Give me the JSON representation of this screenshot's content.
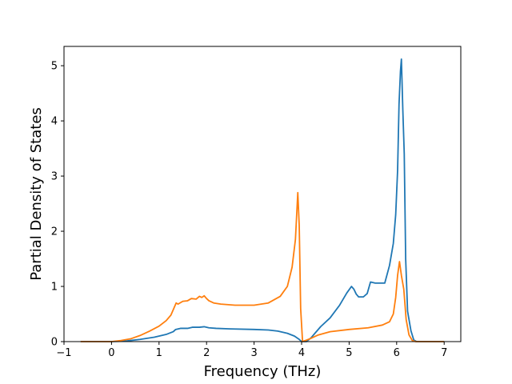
{
  "chart_data": {
    "type": "line",
    "title": "",
    "xlabel": "Frequency (THz)",
    "ylabel": "Partial Density of States",
    "xlim": [
      -1,
      7.35
    ],
    "ylim": [
      0,
      5.35
    ],
    "xticks": [
      -1,
      0,
      1,
      2,
      3,
      4,
      5,
      6,
      7
    ],
    "yticks": [
      0,
      1,
      2,
      3,
      4,
      5
    ],
    "grid": false,
    "legend": "none",
    "series": [
      {
        "color": "#1f77b4",
        "points": [
          [
            -0.65,
            0
          ],
          [
            0,
            0
          ],
          [
            0.3,
            0.01
          ],
          [
            0.6,
            0.04
          ],
          [
            0.9,
            0.08
          ],
          [
            1.15,
            0.13
          ],
          [
            1.3,
            0.18
          ],
          [
            1.35,
            0.22
          ],
          [
            1.45,
            0.24
          ],
          [
            1.6,
            0.24
          ],
          [
            1.7,
            0.26
          ],
          [
            1.85,
            0.26
          ],
          [
            1.95,
            0.27
          ],
          [
            2.05,
            0.25
          ],
          [
            2.2,
            0.24
          ],
          [
            2.5,
            0.23
          ],
          [
            3.0,
            0.22
          ],
          [
            3.3,
            0.21
          ],
          [
            3.5,
            0.19
          ],
          [
            3.7,
            0.15
          ],
          [
            3.85,
            0.1
          ],
          [
            3.95,
            0.04
          ],
          [
            4.0,
            0
          ],
          [
            4.1,
            0
          ],
          [
            4.2,
            0.07
          ],
          [
            4.3,
            0.17
          ],
          [
            4.4,
            0.27
          ],
          [
            4.6,
            0.43
          ],
          [
            4.8,
            0.66
          ],
          [
            4.95,
            0.88
          ],
          [
            5.05,
            1.0
          ],
          [
            5.1,
            0.95
          ],
          [
            5.15,
            0.86
          ],
          [
            5.2,
            0.81
          ],
          [
            5.3,
            0.81
          ],
          [
            5.38,
            0.87
          ],
          [
            5.45,
            1.08
          ],
          [
            5.55,
            1.06
          ],
          [
            5.75,
            1.06
          ],
          [
            5.85,
            1.38
          ],
          [
            5.93,
            1.78
          ],
          [
            5.98,
            2.3
          ],
          [
            6.02,
            3.1
          ],
          [
            6.05,
            4.3
          ],
          [
            6.08,
            4.9
          ],
          [
            6.1,
            5.12
          ],
          [
            6.13,
            4.2
          ],
          [
            6.16,
            3.4
          ],
          [
            6.19,
            1.5
          ],
          [
            6.23,
            0.55
          ],
          [
            6.3,
            0.2
          ],
          [
            6.36,
            0.03
          ],
          [
            6.42,
            0
          ],
          [
            7.0,
            0
          ]
        ]
      },
      {
        "color": "#ff7f0e",
        "points": [
          [
            -0.65,
            0
          ],
          [
            0,
            0
          ],
          [
            0.2,
            0.02
          ],
          [
            0.4,
            0.05
          ],
          [
            0.6,
            0.11
          ],
          [
            0.8,
            0.19
          ],
          [
            1.0,
            0.28
          ],
          [
            1.15,
            0.38
          ],
          [
            1.25,
            0.48
          ],
          [
            1.32,
            0.62
          ],
          [
            1.36,
            0.7
          ],
          [
            1.4,
            0.68
          ],
          [
            1.5,
            0.73
          ],
          [
            1.6,
            0.74
          ],
          [
            1.68,
            0.78
          ],
          [
            1.78,
            0.77
          ],
          [
            1.85,
            0.82
          ],
          [
            1.9,
            0.8
          ],
          [
            1.95,
            0.83
          ],
          [
            2.0,
            0.78
          ],
          [
            2.05,
            0.74
          ],
          [
            2.15,
            0.7
          ],
          [
            2.3,
            0.68
          ],
          [
            2.6,
            0.66
          ],
          [
            3.0,
            0.66
          ],
          [
            3.3,
            0.7
          ],
          [
            3.55,
            0.82
          ],
          [
            3.7,
            1.0
          ],
          [
            3.8,
            1.35
          ],
          [
            3.87,
            1.85
          ],
          [
            3.92,
            2.7
          ],
          [
            3.95,
            2.1
          ],
          [
            3.98,
            0.6
          ],
          [
            4.02,
            0
          ],
          [
            4.2,
            0.06
          ],
          [
            4.35,
            0.12
          ],
          [
            4.6,
            0.18
          ],
          [
            5.0,
            0.22
          ],
          [
            5.4,
            0.25
          ],
          [
            5.7,
            0.3
          ],
          [
            5.85,
            0.36
          ],
          [
            5.93,
            0.5
          ],
          [
            5.98,
            0.8
          ],
          [
            6.02,
            1.2
          ],
          [
            6.06,
            1.45
          ],
          [
            6.1,
            1.2
          ],
          [
            6.15,
            0.95
          ],
          [
            6.2,
            0.4
          ],
          [
            6.26,
            0.12
          ],
          [
            6.33,
            0.02
          ],
          [
            6.4,
            0
          ],
          [
            7.0,
            0
          ]
        ]
      }
    ]
  }
}
